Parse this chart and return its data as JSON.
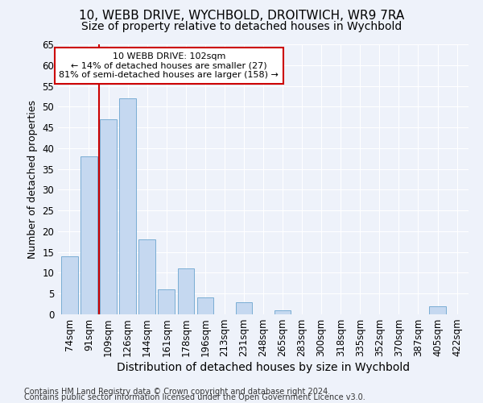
{
  "title1": "10, WEBB DRIVE, WYCHBOLD, DROITWICH, WR9 7RA",
  "title2": "Size of property relative to detached houses in Wychbold",
  "xlabel": "Distribution of detached houses by size in Wychbold",
  "ylabel": "Number of detached properties",
  "categories": [
    "74sqm",
    "91sqm",
    "109sqm",
    "126sqm",
    "144sqm",
    "161sqm",
    "178sqm",
    "196sqm",
    "213sqm",
    "231sqm",
    "248sqm",
    "265sqm",
    "283sqm",
    "300sqm",
    "318sqm",
    "335sqm",
    "352sqm",
    "370sqm",
    "387sqm",
    "405sqm",
    "422sqm"
  ],
  "values": [
    14,
    38,
    47,
    52,
    18,
    6,
    11,
    4,
    0,
    3,
    0,
    1,
    0,
    0,
    0,
    0,
    0,
    0,
    0,
    2,
    0
  ],
  "bar_color": "#c5d8f0",
  "bar_edge_color": "#7aadd4",
  "annotation_title": "10 WEBB DRIVE: 102sqm",
  "annotation_line1": "← 14% of detached houses are smaller (27)",
  "annotation_line2": "81% of semi-detached houses are larger (158) →",
  "annotation_box_facecolor": "#ffffff",
  "annotation_box_edgecolor": "#cc0000",
  "red_line_index": 2,
  "ylim": [
    0,
    65
  ],
  "yticks": [
    0,
    5,
    10,
    15,
    20,
    25,
    30,
    35,
    40,
    45,
    50,
    55,
    60,
    65
  ],
  "footnote1": "Contains HM Land Registry data © Crown copyright and database right 2024.",
  "footnote2": "Contains public sector information licensed under the Open Government Licence v3.0.",
  "background_color": "#eef2fa",
  "grid_color": "#ffffff",
  "title1_fontsize": 11,
  "title2_fontsize": 10,
  "xlabel_fontsize": 10,
  "ylabel_fontsize": 9,
  "tick_fontsize": 8.5,
  "footnote_fontsize": 7
}
